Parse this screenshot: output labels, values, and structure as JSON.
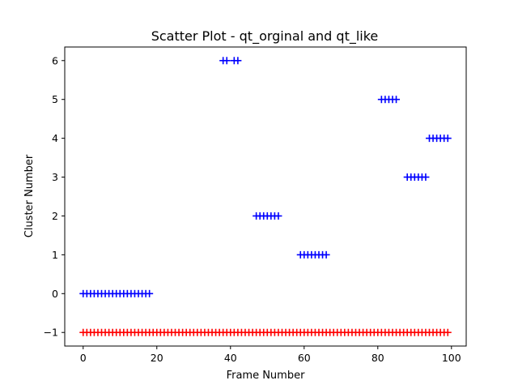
{
  "chart_data": {
    "type": "scatter",
    "title": "Scatter Plot - qt_orginal and qt_like",
    "xlabel": "Frame Number",
    "ylabel": "Cluster Number",
    "xlim": [
      -5,
      104
    ],
    "ylim": [
      -1.35,
      6.35
    ],
    "xticks": [
      0,
      20,
      40,
      60,
      80,
      100
    ],
    "yticks": [
      -1,
      0,
      1,
      2,
      3,
      4,
      5,
      6
    ],
    "xtick_labels": [
      "0",
      "20",
      "40",
      "60",
      "80",
      "100"
    ],
    "ytick_labels": [
      "−1",
      "0",
      "1",
      "2",
      "3",
      "4",
      "5",
      "6"
    ],
    "grid": false,
    "marker": "+",
    "series": [
      {
        "color": "#ff0000",
        "points": [
          [
            0,
            -1
          ],
          [
            1,
            -1
          ],
          [
            2,
            -1
          ],
          [
            3,
            -1
          ],
          [
            4,
            -1
          ],
          [
            5,
            -1
          ],
          [
            6,
            -1
          ],
          [
            7,
            -1
          ],
          [
            8,
            -1
          ],
          [
            9,
            -1
          ],
          [
            10,
            -1
          ],
          [
            11,
            -1
          ],
          [
            12,
            -1
          ],
          [
            13,
            -1
          ],
          [
            14,
            -1
          ],
          [
            15,
            -1
          ],
          [
            16,
            -1
          ],
          [
            17,
            -1
          ],
          [
            18,
            -1
          ],
          [
            19,
            -1
          ],
          [
            20,
            -1
          ],
          [
            21,
            -1
          ],
          [
            22,
            -1
          ],
          [
            23,
            -1
          ],
          [
            24,
            -1
          ],
          [
            25,
            -1
          ],
          [
            26,
            -1
          ],
          [
            27,
            -1
          ],
          [
            28,
            -1
          ],
          [
            29,
            -1
          ],
          [
            30,
            -1
          ],
          [
            31,
            -1
          ],
          [
            32,
            -1
          ],
          [
            33,
            -1
          ],
          [
            34,
            -1
          ],
          [
            35,
            -1
          ],
          [
            36,
            -1
          ],
          [
            37,
            -1
          ],
          [
            38,
            -1
          ],
          [
            39,
            -1
          ],
          [
            40,
            -1
          ],
          [
            41,
            -1
          ],
          [
            42,
            -1
          ],
          [
            43,
            -1
          ],
          [
            44,
            -1
          ],
          [
            45,
            -1
          ],
          [
            46,
            -1
          ],
          [
            47,
            -1
          ],
          [
            48,
            -1
          ],
          [
            49,
            -1
          ],
          [
            50,
            -1
          ],
          [
            51,
            -1
          ],
          [
            52,
            -1
          ],
          [
            53,
            -1
          ],
          [
            54,
            -1
          ],
          [
            55,
            -1
          ],
          [
            56,
            -1
          ],
          [
            57,
            -1
          ],
          [
            58,
            -1
          ],
          [
            59,
            -1
          ],
          [
            60,
            -1
          ],
          [
            61,
            -1
          ],
          [
            62,
            -1
          ],
          [
            63,
            -1
          ],
          [
            64,
            -1
          ],
          [
            65,
            -1
          ],
          [
            66,
            -1
          ],
          [
            67,
            -1
          ],
          [
            68,
            -1
          ],
          [
            69,
            -1
          ],
          [
            70,
            -1
          ],
          [
            71,
            -1
          ],
          [
            72,
            -1
          ],
          [
            73,
            -1
          ],
          [
            74,
            -1
          ],
          [
            75,
            -1
          ],
          [
            76,
            -1
          ],
          [
            77,
            -1
          ],
          [
            78,
            -1
          ],
          [
            79,
            -1
          ],
          [
            80,
            -1
          ],
          [
            81,
            -1
          ],
          [
            82,
            -1
          ],
          [
            83,
            -1
          ],
          [
            84,
            -1
          ],
          [
            85,
            -1
          ],
          [
            86,
            -1
          ],
          [
            87,
            -1
          ],
          [
            88,
            -1
          ],
          [
            89,
            -1
          ],
          [
            90,
            -1
          ],
          [
            91,
            -1
          ],
          [
            92,
            -1
          ],
          [
            93,
            -1
          ],
          [
            94,
            -1
          ],
          [
            95,
            -1
          ],
          [
            96,
            -1
          ],
          [
            97,
            -1
          ],
          [
            98,
            -1
          ],
          [
            99,
            -1
          ]
        ]
      },
      {
        "color": "#0000ff",
        "points": [
          [
            0,
            0
          ],
          [
            1,
            0
          ],
          [
            2,
            0
          ],
          [
            3,
            0
          ],
          [
            4,
            0
          ],
          [
            5,
            0
          ],
          [
            6,
            0
          ],
          [
            7,
            0
          ],
          [
            8,
            0
          ],
          [
            9,
            0
          ],
          [
            10,
            0
          ],
          [
            11,
            0
          ],
          [
            12,
            0
          ],
          [
            13,
            0
          ],
          [
            14,
            0
          ],
          [
            15,
            0
          ],
          [
            16,
            0
          ],
          [
            17,
            0
          ],
          [
            18,
            0
          ],
          [
            38,
            6
          ],
          [
            39,
            6
          ],
          [
            41,
            6
          ],
          [
            42,
            6
          ],
          [
            47,
            2
          ],
          [
            48,
            2
          ],
          [
            49,
            2
          ],
          [
            50,
            2
          ],
          [
            51,
            2
          ],
          [
            52,
            2
          ],
          [
            53,
            2
          ],
          [
            59,
            1
          ],
          [
            60,
            1
          ],
          [
            61,
            1
          ],
          [
            62,
            1
          ],
          [
            63,
            1
          ],
          [
            64,
            1
          ],
          [
            65,
            1
          ],
          [
            66,
            1
          ],
          [
            81,
            5
          ],
          [
            82,
            5
          ],
          [
            83,
            5
          ],
          [
            84,
            5
          ],
          [
            85,
            5
          ],
          [
            88,
            3
          ],
          [
            89,
            3
          ],
          [
            90,
            3
          ],
          [
            91,
            3
          ],
          [
            92,
            3
          ],
          [
            93,
            3
          ],
          [
            94,
            4
          ],
          [
            95,
            4
          ],
          [
            96,
            4
          ],
          [
            97,
            4
          ],
          [
            98,
            4
          ],
          [
            99,
            4
          ]
        ]
      }
    ]
  }
}
